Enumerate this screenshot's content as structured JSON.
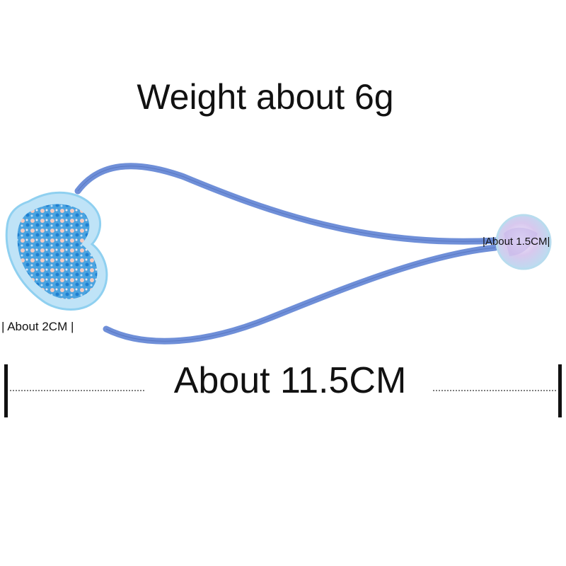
{
  "weight_text": "Weight about 6g",
  "length_text": "About 11.5CM",
  "heart_size_text": "| About 2CM  |",
  "ball_size_text": "|About 1.5CM|",
  "colors": {
    "elastic": "#6f8fd8",
    "heart": "#7cc3ee",
    "ball": "#cfe8f4",
    "text": "#111111"
  }
}
